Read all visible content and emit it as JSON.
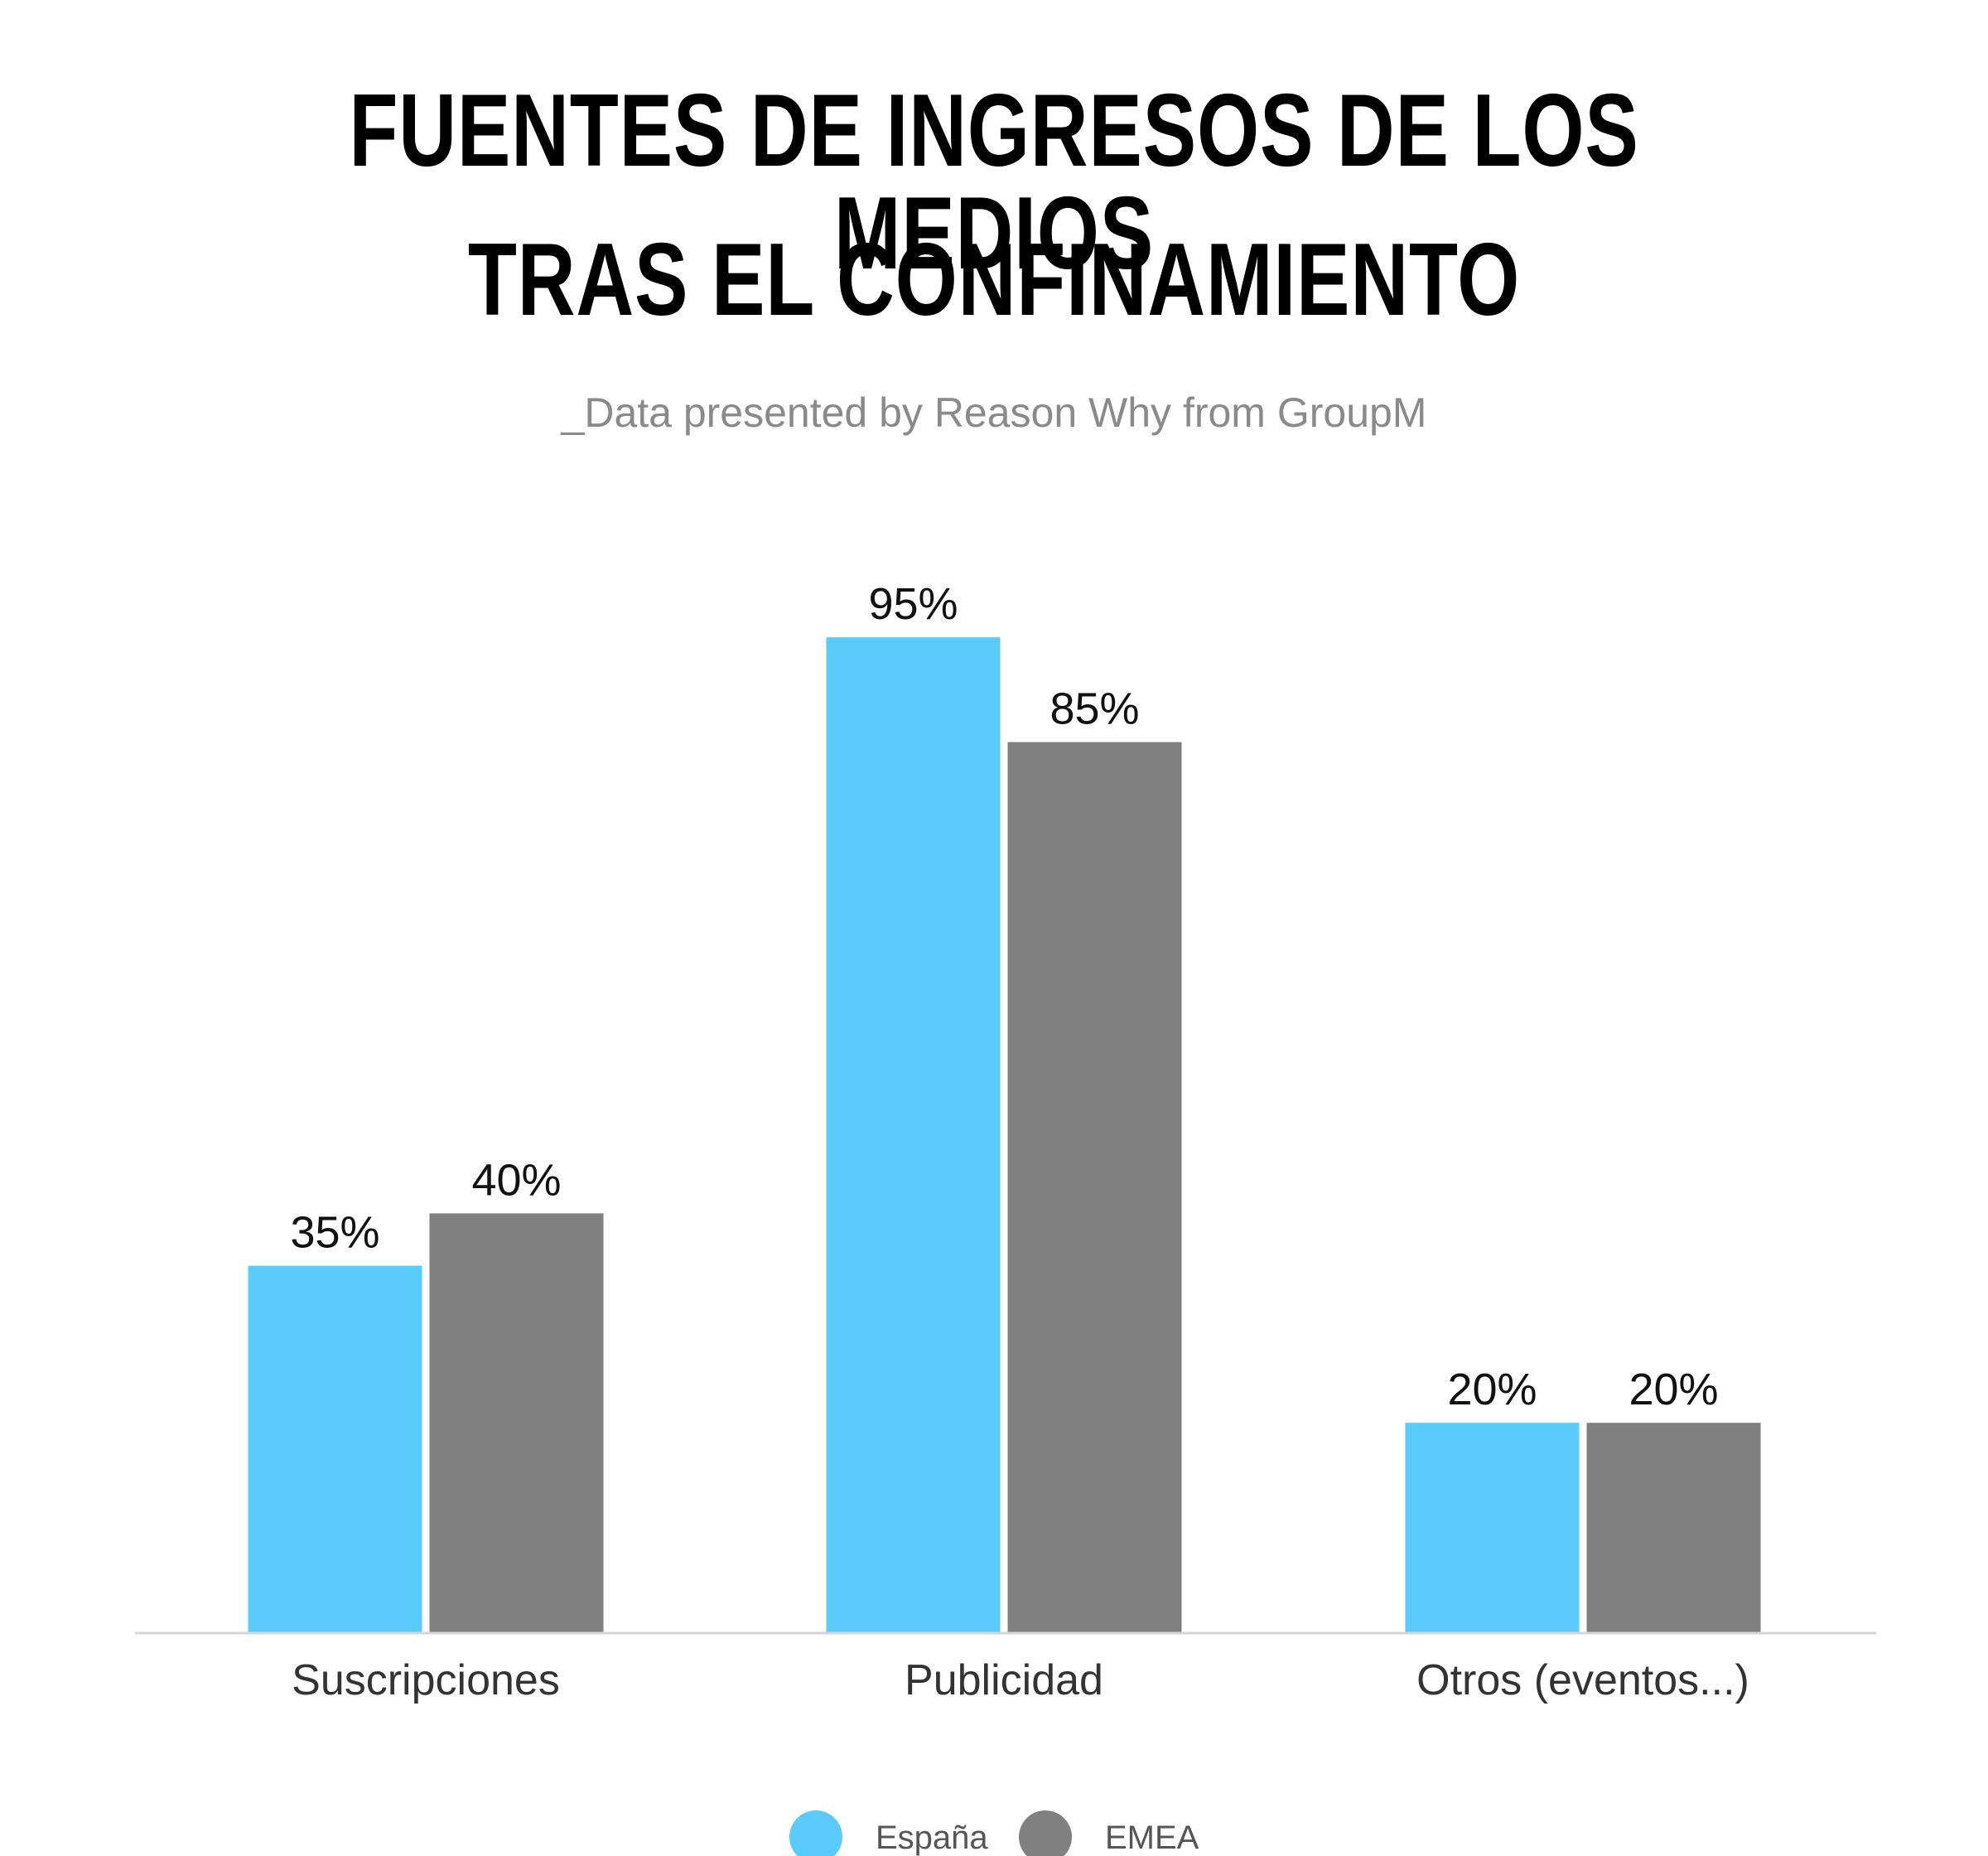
{
  "header": {
    "title_line_1": "FUENTES DE INGRESOS DE LOS MEDIOS",
    "title_line_2": "TRAS EL CONFINAMIENTO",
    "subtitle": "_Data presented by Reason Why from GroupM"
  },
  "chart_data": {
    "type": "bar",
    "categories": [
      "Suscripciones",
      "Publicidad",
      "Otros (eventos...)"
    ],
    "series": [
      {
        "name": "España",
        "values": [
          35,
          95,
          20
        ],
        "value_labels": [
          "35%",
          "95%",
          "20%"
        ],
        "color": "#5BCBFC"
      },
      {
        "name": "EMEA",
        "values": [
          40,
          85,
          20
        ],
        "value_labels": [
          "40%",
          "85%",
          "20%"
        ],
        "color": "#808080"
      }
    ],
    "ylim": [
      0,
      100
    ],
    "unit": "%",
    "grid": false,
    "legend_position": "bottom-center",
    "axis_color": "#d6d6d6"
  }
}
